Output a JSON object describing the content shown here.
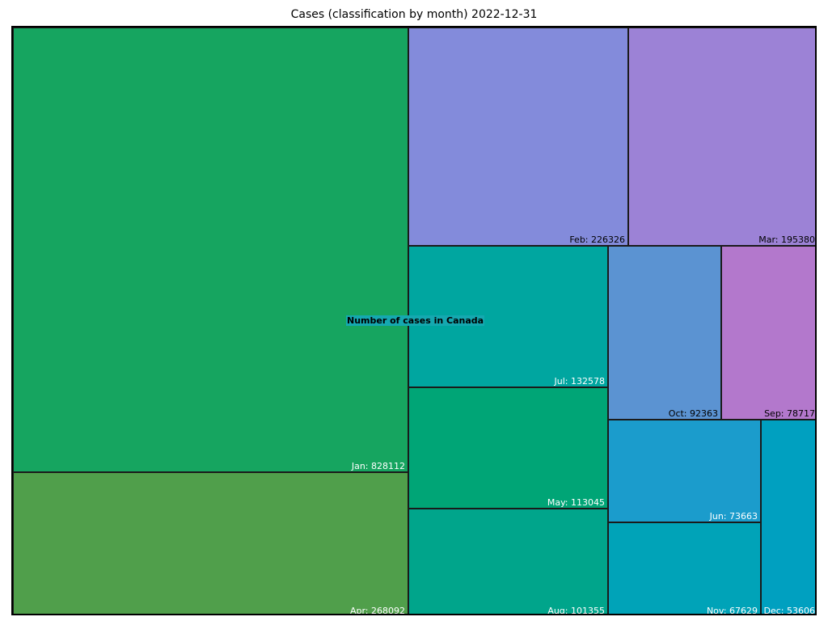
{
  "chart_data": {
    "type": "treemap",
    "title": "Cases (classification by month)  2022-12-31",
    "center_label": "Number of cases in Canada",
    "cells": [
      {
        "month": "Jan",
        "value": 828112,
        "label": "Jan: 828112",
        "color": "#16a560",
        "text_color": "#ffffff"
      },
      {
        "month": "Apr",
        "value": 268092,
        "label": "Apr: 268092",
        "color": "#509f4b",
        "text_color": "#ffffff"
      },
      {
        "month": "Feb",
        "value": 226326,
        "label": "Feb: 226326",
        "color": "#838bdb",
        "text_color": "#000000"
      },
      {
        "month": "Mar",
        "value": 195380,
        "label": "Mar: 195380",
        "color": "#9c82d6",
        "text_color": "#000000"
      },
      {
        "month": "Jul",
        "value": 132578,
        "label": "Jul: 132578",
        "color": "#00a6a0",
        "text_color": "#ffffff"
      },
      {
        "month": "May",
        "value": 113045,
        "label": "May: 113045",
        "color": "#00a576",
        "text_color": "#ffffff"
      },
      {
        "month": "Aug",
        "value": 101355,
        "label": "Aug: 101355",
        "color": "#00a58b",
        "text_color": "#ffffff"
      },
      {
        "month": "Oct",
        "value": 92363,
        "label": "Oct: 92363",
        "color": "#5b93d2",
        "text_color": "#000000"
      },
      {
        "month": "Sep",
        "value": 78717,
        "label": "Sep: 78717",
        "color": "#b378cc",
        "text_color": "#000000"
      },
      {
        "month": "Jun",
        "value": 73663,
        "label": "Jun: 73663",
        "color": "#1b9ccc",
        "text_color": "#ffffff"
      },
      {
        "month": "Nov",
        "value": 67629,
        "label": "Nov: 67629",
        "color": "#00a3b8",
        "text_color": "#ffffff"
      },
      {
        "month": "Dec",
        "value": 53606,
        "label": "Dec: 53606",
        "color": "#00a0c0",
        "text_color": "#ffffff"
      }
    ]
  }
}
